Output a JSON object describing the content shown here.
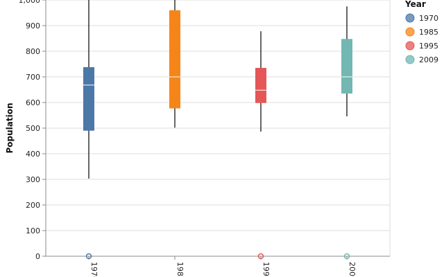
{
  "chart_data": {
    "type": "boxplot",
    "xlabel": "",
    "ylabel": "Population",
    "ylim": [
      0,
      1000
    ],
    "yticks": [
      0,
      100,
      200,
      300,
      400,
      500,
      600,
      700,
      800,
      900,
      1000
    ],
    "ytick_labels": [
      "0",
      "100",
      "200",
      "300",
      "400",
      "500",
      "600",
      "700",
      "800",
      "900",
      "1,000"
    ],
    "grid": true,
    "legend_title": "Year",
    "legend_position": "top-right",
    "series": [
      {
        "name": "1970",
        "color": "#4c78a8",
        "min": 303,
        "q1": 490,
        "median": 668,
        "q3": 738,
        "max": 1000,
        "outliers": [
          0
        ]
      },
      {
        "name": "1985",
        "color": "#f58518",
        "min": 502,
        "q1": 577,
        "median": 700,
        "q3": 960,
        "max": 1000,
        "outliers": []
      },
      {
        "name": "1995",
        "color": "#e45756",
        "min": 486,
        "q1": 598,
        "median": 648,
        "q3": 735,
        "max": 878,
        "outliers": [
          0
        ]
      },
      {
        "name": "2009",
        "color": "#72b7b2",
        "min": 546,
        "q1": 635,
        "median": 700,
        "q3": 848,
        "max": 975,
        "outliers": [
          0
        ]
      }
    ]
  }
}
